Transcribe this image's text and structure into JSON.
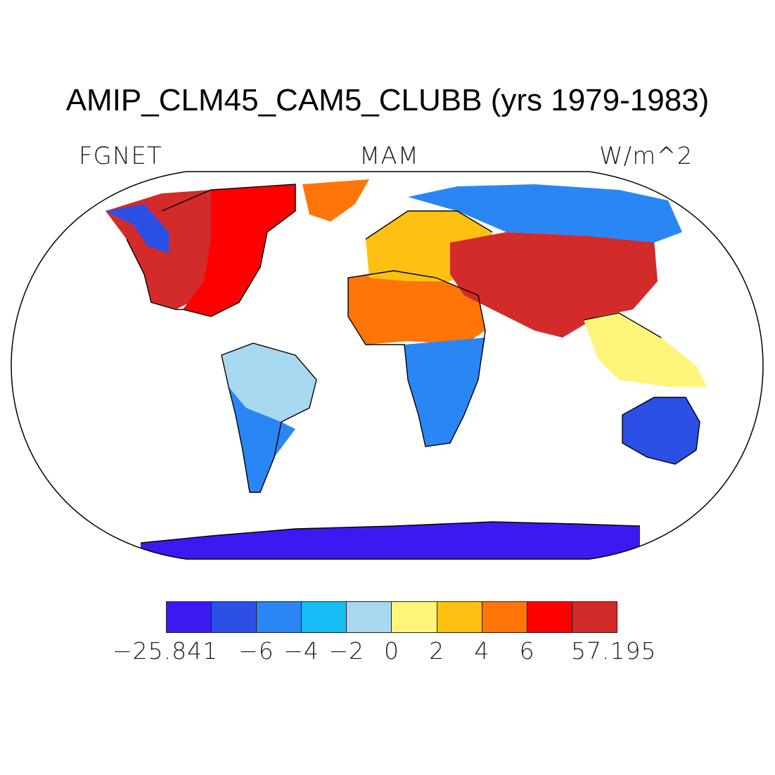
{
  "title": "AMIP_CLM45_CAM5_CLUBB (yrs 1979-1983)",
  "labels": {
    "variable": "FGNET",
    "season": "MAM",
    "units": "W/m^2"
  },
  "colorbar": {
    "colors": [
      "#3a1af0",
      "#2c4fe6",
      "#2a86f5",
      "#17bdf5",
      "#a8d8f0",
      "#fff57a",
      "#ffc111",
      "#ff7508",
      "#ff0000",
      "#d32a2a"
    ],
    "ticks": [
      "−25.841",
      "−6",
      "−4",
      "−2",
      "0",
      "2",
      "4",
      "6",
      "57.195"
    ]
  },
  "regions": [
    {
      "name": "north-america-west",
      "color": "#d32a2a"
    },
    {
      "name": "north-america-east",
      "color": "#ff0000"
    },
    {
      "name": "greenland",
      "color": "#ff7508"
    },
    {
      "name": "alaska",
      "color": "#2c4fe6"
    },
    {
      "name": "south-america",
      "color": "#a8d8f0"
    },
    {
      "name": "patagonia",
      "color": "#2a86f5"
    },
    {
      "name": "africa-north",
      "color": "#ff7508"
    },
    {
      "name": "africa-south",
      "color": "#2a86f5"
    },
    {
      "name": "europe",
      "color": "#ffc111"
    },
    {
      "name": "asia-central",
      "color": "#d32a2a"
    },
    {
      "name": "siberia",
      "color": "#2a86f5"
    },
    {
      "name": "southeast-asia",
      "color": "#fff57a"
    },
    {
      "name": "australia",
      "color": "#2c4fe6"
    },
    {
      "name": "antarctica",
      "color": "#3a1af0"
    }
  ]
}
